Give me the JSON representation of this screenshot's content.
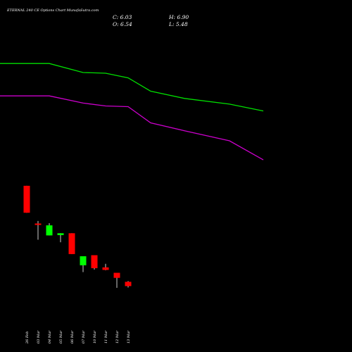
{
  "chart_data": {
    "type": "candlestick",
    "title": "ETERNAL 240  CE Options  Chart MunafaSutra.com",
    "ohlc_readout": {
      "close_label": "C: 6.03",
      "high_label": "H: 6.90",
      "open_label": "O: 6.54",
      "low_label": "L: 5.48"
    },
    "categories": [
      "26 Feb",
      "03 Mar",
      "04 Mar",
      "05 Mar",
      "06 Mar",
      "07 Mar",
      "10 Mar",
      "11 Mar",
      "12 Mar",
      "13 Mar"
    ],
    "candles": [
      {
        "open": 29.0,
        "high": 29.0,
        "low": 21.5,
        "close": 21.5
      },
      {
        "open": 18.5,
        "high": 19.2,
        "low": 14.0,
        "close": 18.1
      },
      {
        "open": 15.2,
        "high": 18.6,
        "low": 15.2,
        "close": 18.0
      },
      {
        "open": 15.3,
        "high": 15.8,
        "low": 13.3,
        "close": 15.8
      },
      {
        "open": 15.8,
        "high": 15.8,
        "low": 10.0,
        "close": 10.0
      },
      {
        "open": 6.9,
        "high": 9.4,
        "low": 5.0,
        "close": 9.4
      },
      {
        "open": 9.7,
        "high": 9.7,
        "low": 5.7,
        "close": 6.1
      },
      {
        "open": 6.3,
        "high": 7.3,
        "low": 5.5,
        "close": 5.6
      },
      {
        "open": 4.8,
        "high": 4.8,
        "low": 0.6,
        "close": 3.4
      },
      {
        "open": 2.3,
        "high": 2.5,
        "low": 0.7,
        "close": 1.1
      }
    ],
    "series": [
      {
        "color": "#00e000",
        "x": [
          0,
          2,
          5,
          7,
          9,
          11,
          14,
          18,
          21
        ],
        "values": [
          63.0,
          63.0,
          60.5,
          60.3,
          59.0,
          55.3,
          53.3,
          51.7,
          49.8
        ]
      },
      {
        "color": "#cc00cc",
        "x": [
          0,
          2,
          5,
          7,
          9,
          11,
          14,
          18,
          21
        ],
        "values": [
          54.0,
          54.0,
          52.0,
          51.2,
          51.0,
          46.5,
          44.3,
          41.5,
          36.2
        ]
      }
    ],
    "colors": {
      "background": "#000000",
      "up": "#00ff00",
      "down": "#ff0000",
      "text": "#ffffff",
      "wick": "#ffffff"
    }
  }
}
